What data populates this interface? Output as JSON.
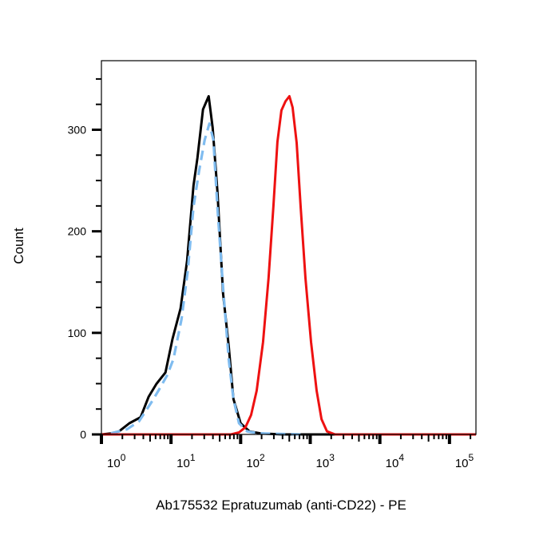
{
  "chart_data": {
    "type": "line",
    "title": "",
    "xlabel": "Ab175532 Epratuzumab (anti-CD22) - PE",
    "ylabel": "Count",
    "x_scale": "log",
    "xlim": [
      1,
      240000
    ],
    "ylim": [
      0,
      368
    ],
    "x_ticks": [
      1,
      10,
      100,
      1000,
      10000,
      100000
    ],
    "x_tick_labels": [
      {
        "base": "10",
        "exp": "0"
      },
      {
        "base": "10",
        "exp": "1"
      },
      {
        "base": "10",
        "exp": "2"
      },
      {
        "base": "10",
        "exp": "3"
      },
      {
        "base": "10",
        "exp": "4"
      },
      {
        "base": "10",
        "exp": "5"
      }
    ],
    "y_ticks": [
      0,
      100,
      200,
      300
    ],
    "y_tick_labels": [
      "0",
      "100",
      "200",
      "300"
    ],
    "y_minor_step": 25,
    "grid": false,
    "legend": "none",
    "series": [
      {
        "color": "#000000",
        "style": "solid",
        "x": [
          1,
          1.37,
          1.79,
          2.52,
          3.66,
          4.77,
          6.21,
          8.31,
          10.5,
          13.7,
          17.0,
          21.0,
          23.9,
          28.8,
          34.7,
          39.6,
          46.4,
          55.9,
          67.3,
          78.8,
          100,
          134,
          194,
          400,
          240000
        ],
        "y": [
          0,
          1,
          3,
          11,
          17,
          37,
          50,
          61,
          94,
          124,
          171,
          245,
          272,
          320,
          333,
          302,
          239,
          139,
          87,
          35,
          11,
          3,
          1,
          0,
          0
        ]
      },
      {
        "color": "#7fbcf0",
        "style": "dashed",
        "x": [
          1.37,
          2.33,
          3.47,
          5.16,
          6.72,
          8.76,
          10.8,
          14.1,
          17.4,
          21.0,
          25.2,
          30.4,
          35.6,
          40.6,
          46.4,
          55.9,
          67.3,
          78.8,
          94.8,
          124,
          184,
          788
        ],
        "y": [
          1,
          5,
          13,
          31,
          44,
          58,
          74,
          113,
          161,
          224,
          259,
          290,
          306,
          290,
          223,
          145,
          74,
          35,
          11,
          3,
          1,
          0
        ]
      },
      {
        "color": "#ee1111",
        "style": "solid",
        "x": [
          1,
          72.8,
          94.8,
          117,
          141,
          170,
          210,
          252,
          296,
          338,
          385,
          441,
          502,
          558,
          638,
          728,
          853,
          1026,
          1236,
          1449,
          1742,
          2271,
          240000
        ],
        "y": [
          0,
          0,
          2,
          7,
          19,
          43,
          91,
          154,
          225,
          288,
          319,
          328,
          333,
          322,
          287,
          224,
          154,
          91,
          43,
          15,
          3,
          0,
          0
        ]
      }
    ]
  }
}
